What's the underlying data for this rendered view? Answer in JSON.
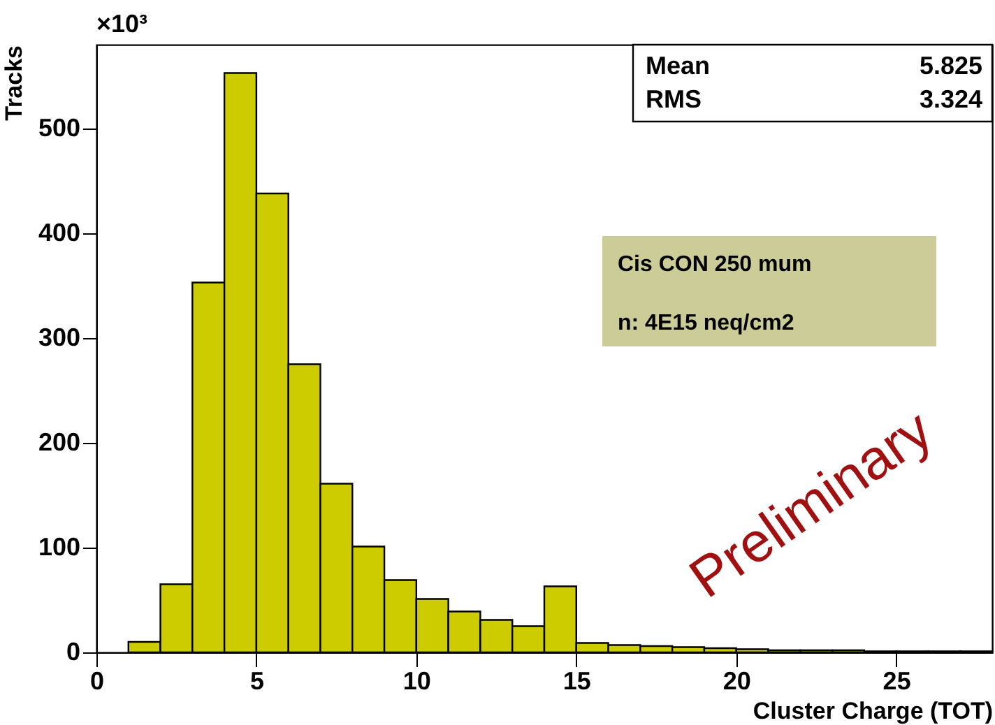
{
  "chart_data": {
    "type": "histogram",
    "xlabel": "Cluster Charge (TOT)",
    "ylabel": "Tracks",
    "bins": [
      0,
      1,
      2,
      3,
      4,
      5,
      6,
      7,
      8,
      9,
      10,
      11,
      12,
      13,
      14,
      15,
      16,
      17,
      18,
      19,
      20,
      21,
      22,
      23,
      24,
      25,
      26,
      27,
      28
    ],
    "values": [
      0,
      10,
      65,
      353,
      553,
      438,
      275,
      161,
      101,
      69,
      51,
      39,
      31,
      25,
      63,
      9,
      7,
      6,
      5,
      4,
      3,
      2,
      2,
      2,
      1,
      1,
      1,
      1
    ],
    "color": "#cccc00",
    "xlim": [
      0,
      28
    ],
    "xticks": [
      0,
      5,
      10,
      15,
      20,
      25
    ],
    "ylim": [
      0,
      580
    ],
    "yticks": [
      0,
      100,
      200,
      300,
      400,
      500
    ],
    "grid": false,
    "annotations": [
      "×10³",
      "Mean",
      "5.825",
      "RMS",
      "3.324",
      "Cis CON 250 mum",
      "n: 4E15 neq/cm2",
      "Preliminary"
    ]
  }
}
